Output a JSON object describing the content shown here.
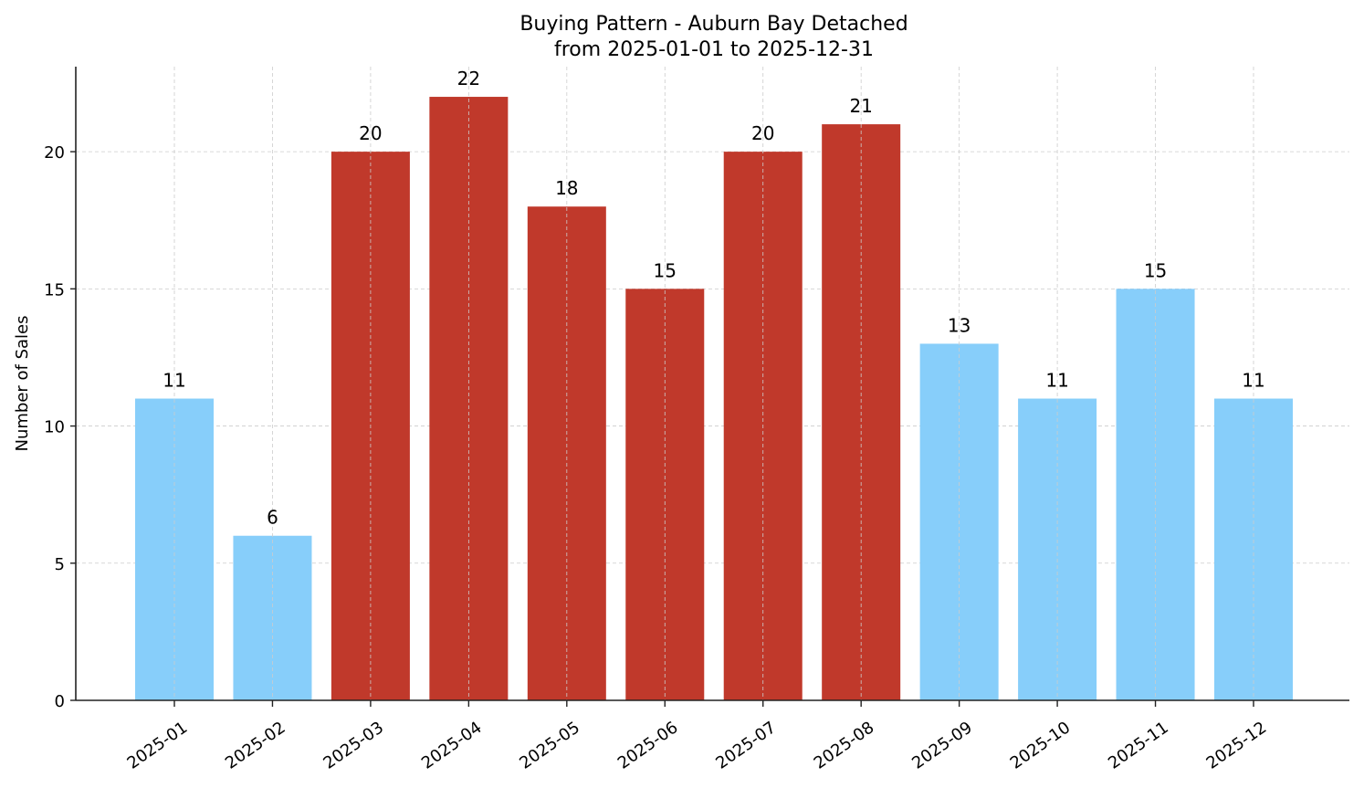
{
  "chart_data": {
    "type": "bar",
    "title": "Buying Pattern - Auburn Bay Detached",
    "subtitle": "from 2025-01-01 to 2025-12-31",
    "xlabel": "",
    "ylabel": "Number of Sales",
    "categories": [
      "2025-01",
      "2025-02",
      "2025-03",
      "2025-04",
      "2025-05",
      "2025-06",
      "2025-07",
      "2025-08",
      "2025-09",
      "2025-10",
      "2025-11",
      "2025-12"
    ],
    "values": [
      11,
      6,
      20,
      22,
      18,
      15,
      20,
      21,
      13,
      11,
      15,
      11
    ],
    "bar_colors": [
      "#87cefa",
      "#87cefa",
      "#c0392b",
      "#c0392b",
      "#c0392b",
      "#c0392b",
      "#c0392b",
      "#c0392b",
      "#87cefa",
      "#87cefa",
      "#87cefa",
      "#87cefa"
    ],
    "highlight_color": "#c0392b",
    "base_color": "#87cefa",
    "ylim": [
      0,
      23.1
    ],
    "yticks": [
      0,
      5,
      10,
      15,
      20
    ],
    "grid": true,
    "grid_style": "dashed",
    "data_labels": true,
    "legend": "none",
    "xtick_rotation": 35
  }
}
